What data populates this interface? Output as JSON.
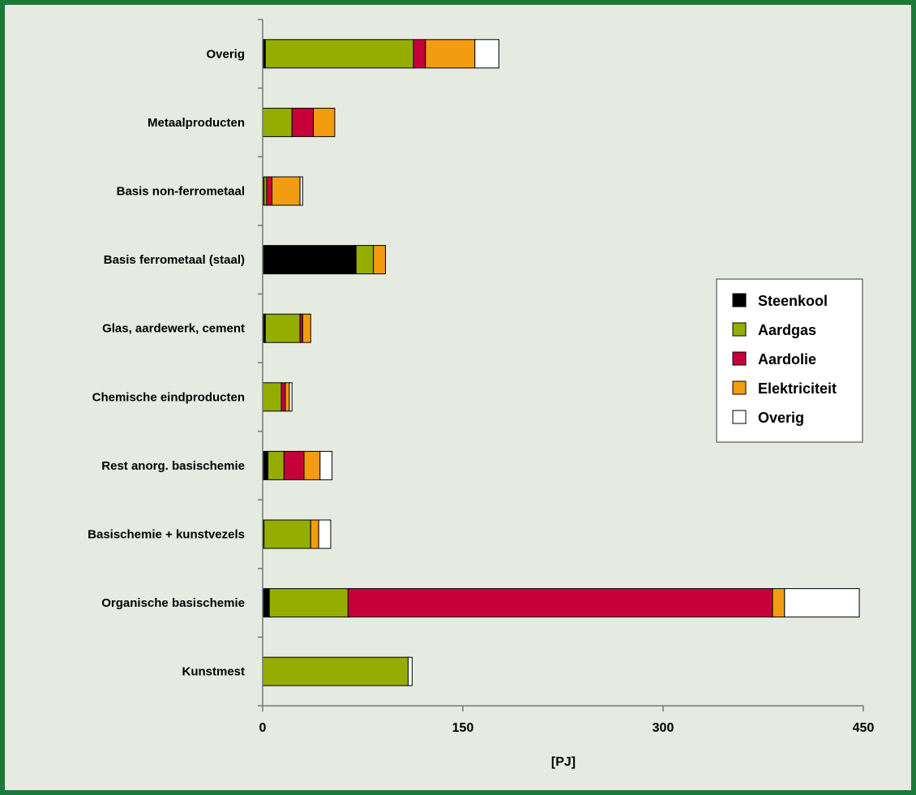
{
  "chart_data": {
    "type": "bar",
    "orientation": "horizontal",
    "stacked": true,
    "title": "",
    "xlabel": "[PJ]",
    "ylabel": "",
    "xlim": [
      0,
      450
    ],
    "xticks": [
      0,
      150,
      300,
      450
    ],
    "grid": false,
    "legend_position": "right",
    "categories": [
      "Overig",
      "Metaalproducten",
      "Basis non-ferrometaal",
      "Basis ferrometaal (staal)",
      "Glas, aardewerk, cement",
      "Chemische eindproducten",
      "Rest anorg. basischemie",
      "Basischemie + kunstvezels",
      "Organische basischemie",
      "Kunstmest"
    ],
    "series": [
      {
        "name": "Steenkool",
        "color": "#000000",
        "values": [
          2,
          0,
          1,
          70,
          2,
          0,
          4,
          1,
          5,
          0
        ]
      },
      {
        "name": "Aardgas",
        "color": "#94ad00",
        "values": [
          111,
          22,
          2,
          13,
          26,
          14,
          12,
          35,
          59,
          109
        ]
      },
      {
        "name": "Aardolie",
        "color": "#c80039",
        "values": [
          9,
          16,
          4,
          0,
          2,
          3,
          15,
          0,
          318,
          0
        ]
      },
      {
        "name": "Elektriciteit",
        "color": "#f39c12",
        "values": [
          37,
          16,
          21,
          9,
          6,
          3,
          12,
          6,
          9,
          0
        ]
      },
      {
        "name": "Overig",
        "color": "#ffffff",
        "values": [
          18,
          0,
          2,
          0,
          0,
          2,
          9,
          9,
          56,
          3
        ]
      }
    ]
  }
}
